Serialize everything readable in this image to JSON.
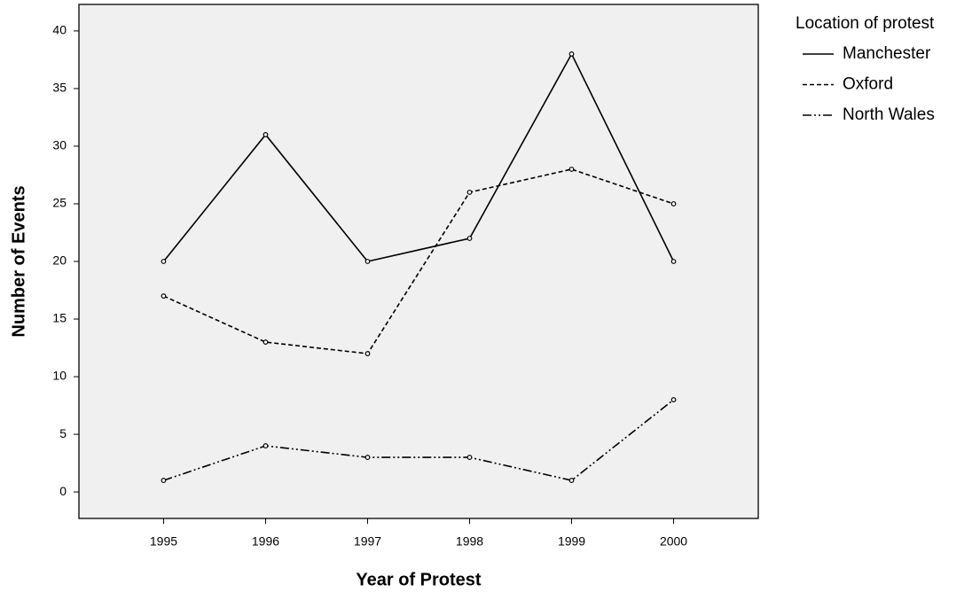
{
  "chart_data": {
    "type": "line",
    "x_label": "Year of Protest",
    "y_label": "Number of Events",
    "legend_title": "Location of protest",
    "legend": "right",
    "x": [
      1995,
      1996,
      1997,
      1998,
      1999,
      2000
    ],
    "series": [
      {
        "name": "Manchester",
        "color": "#000000",
        "dash": "solid",
        "values": [
          20,
          31,
          20,
          22,
          38,
          20
        ]
      },
      {
        "name": "Oxford",
        "color": "#000000",
        "dash": "dashed",
        "values": [
          17,
          13,
          12,
          26,
          28,
          25
        ]
      },
      {
        "name": "North Wales",
        "color": "#000000",
        "dash": "dashdotdot",
        "values": [
          1,
          4,
          3,
          3,
          1,
          8
        ]
      }
    ],
    "xlim": [
      1994.17,
      2000.83
    ],
    "xticks": [
      1995,
      1996,
      1997,
      1998,
      1999,
      2000
    ],
    "ylim": [
      -2.3,
      42.3
    ],
    "yticks": [
      0,
      5,
      10,
      15,
      20,
      25,
      30,
      35,
      40
    ],
    "plot_background": "#f0f0f0"
  }
}
